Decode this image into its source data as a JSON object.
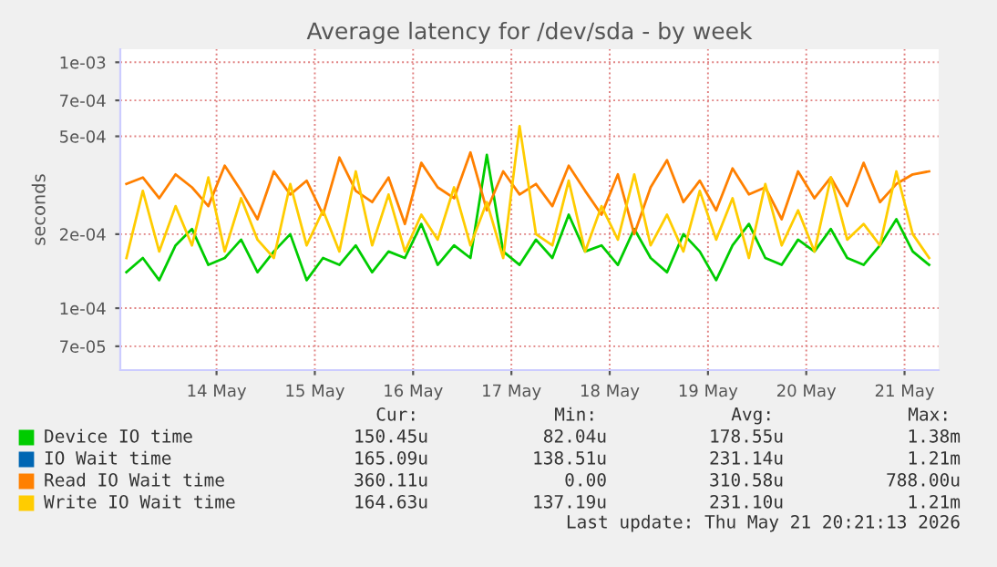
{
  "chart_data": {
    "type": "line",
    "title": "Average latency for /dev/sda - by week",
    "ylabel": "seconds",
    "log": "y",
    "x": [
      "2026-05-13T14:00",
      "2026-05-13T18:00",
      "2026-05-13T22:00",
      "2026-05-14T02:00",
      "2026-05-14T06:00",
      "2026-05-14T10:00",
      "2026-05-14T14:00",
      "2026-05-14T18:00",
      "2026-05-14T22:00",
      "2026-05-15T02:00",
      "2026-05-15T06:00",
      "2026-05-15T10:00",
      "2026-05-15T14:00",
      "2026-05-15T18:00",
      "2026-05-15T22:00",
      "2026-05-16T02:00",
      "2026-05-16T06:00",
      "2026-05-16T10:00",
      "2026-05-16T14:00",
      "2026-05-16T18:00",
      "2026-05-16T22:00",
      "2026-05-17T02:00",
      "2026-05-17T06:00",
      "2026-05-17T10:00",
      "2026-05-17T14:00",
      "2026-05-17T18:00",
      "2026-05-17T22:00",
      "2026-05-18T02:00",
      "2026-05-18T06:00",
      "2026-05-18T10:00",
      "2026-05-18T14:00",
      "2026-05-18T18:00",
      "2026-05-18T22:00",
      "2026-05-19T02:00",
      "2026-05-19T06:00",
      "2026-05-19T10:00",
      "2026-05-19T14:00",
      "2026-05-19T18:00",
      "2026-05-19T22:00",
      "2026-05-20T02:00",
      "2026-05-20T06:00",
      "2026-05-20T10:00",
      "2026-05-20T14:00",
      "2026-05-20T18:00",
      "2026-05-20T22:00",
      "2026-05-21T02:00",
      "2026-05-21T06:00",
      "2026-05-21T10:00",
      "2026-05-21T14:00",
      "2026-05-21T18:00"
    ],
    "series": [
      {
        "name": "Device IO time",
        "color": "#00cc00",
        "values": [
          0.00014,
          0.00016,
          0.00013,
          0.00018,
          0.00021,
          0.00015,
          0.00016,
          0.00019,
          0.00014,
          0.00017,
          0.0002,
          0.00013,
          0.00016,
          0.00015,
          0.00018,
          0.00014,
          0.00017,
          0.00016,
          0.00022,
          0.00015,
          0.00018,
          0.00016,
          0.00042,
          0.00017,
          0.00015,
          0.00019,
          0.00016,
          0.00024,
          0.00017,
          0.00018,
          0.00015,
          0.00021,
          0.00016,
          0.00014,
          0.0002,
          0.00017,
          0.00013,
          0.00018,
          0.00022,
          0.00016,
          0.00015,
          0.00019,
          0.00017,
          0.00021,
          0.00016,
          0.00015,
          0.00018,
          0.00023,
          0.00017,
          0.00015
        ]
      },
      {
        "name": "IO Wait time",
        "color": "#0066b3",
        "values": [
          null,
          null,
          null,
          null,
          null,
          null,
          null,
          null,
          null,
          null,
          null,
          null,
          null,
          null,
          null,
          null,
          null,
          null,
          null,
          null,
          null,
          null,
          null,
          null,
          null,
          null,
          null,
          null,
          null,
          null,
          null,
          null,
          null,
          null,
          null,
          null,
          null,
          null,
          null,
          null,
          null,
          null,
          null,
          null,
          null,
          null,
          null,
          null,
          null,
          null
        ]
      },
      {
        "name": "Read IO Wait time",
        "color": "#ff8000",
        "values": [
          0.00032,
          0.00034,
          0.00028,
          0.00035,
          0.00031,
          0.00026,
          0.00038,
          0.0003,
          0.00023,
          0.00036,
          0.00029,
          0.00033,
          0.00024,
          0.00041,
          0.0003,
          0.00027,
          0.00034,
          0.00022,
          0.00039,
          0.00031,
          0.00028,
          0.00043,
          0.00025,
          0.00036,
          0.00029,
          0.00032,
          0.00026,
          0.00038,
          0.0003,
          0.00024,
          0.00035,
          0.0002,
          0.00031,
          0.0004,
          0.00027,
          0.00033,
          0.00025,
          0.00037,
          0.00029,
          0.00031,
          0.00023,
          0.00036,
          0.00028,
          0.00034,
          0.00026,
          0.00039,
          0.00027,
          0.00032,
          0.00035,
          0.00036
        ]
      },
      {
        "name": "Write IO Wait time",
        "color": "#ffcc00",
        "values": [
          0.00016,
          0.0003,
          0.00017,
          0.00026,
          0.00018,
          0.00034,
          0.00017,
          0.00028,
          0.00019,
          0.00016,
          0.00032,
          0.00018,
          0.00025,
          0.00017,
          0.00036,
          0.00018,
          0.00029,
          0.00017,
          0.00024,
          0.00019,
          0.00031,
          0.00018,
          0.00027,
          0.00016,
          0.00055,
          0.0002,
          0.00018,
          0.00033,
          0.00017,
          0.00026,
          0.00019,
          0.00035,
          0.00018,
          0.00024,
          0.00017,
          0.0003,
          0.00019,
          0.00028,
          0.00016,
          0.00032,
          0.00018,
          0.00025,
          0.00017,
          0.00034,
          0.00019,
          0.00022,
          0.00018,
          0.00036,
          0.0002,
          0.00016
        ]
      }
    ],
    "xlim": [
      "2026-05-13T12:30",
      "2026-05-21T20:20"
    ],
    "xticks": [
      {
        "value": "2026-05-14T12:00",
        "label": "14 May"
      },
      {
        "value": "2026-05-15T12:00",
        "label": "15 May"
      },
      {
        "value": "2026-05-16T12:00",
        "label": "16 May"
      },
      {
        "value": "2026-05-17T12:00",
        "label": "17 May"
      },
      {
        "value": "2026-05-18T12:00",
        "label": "18 May"
      },
      {
        "value": "2026-05-19T12:00",
        "label": "19 May"
      },
      {
        "value": "2026-05-20T12:00",
        "label": "20 May"
      },
      {
        "value": "2026-05-21T12:00",
        "label": "21 May"
      }
    ],
    "ylim": [
      5.6e-05,
      0.00113
    ],
    "yticks": [
      {
        "value": 7e-05,
        "label": "7e-05"
      },
      {
        "value": 0.0001,
        "label": "1e-04"
      },
      {
        "value": 0.0002,
        "label": "2e-04"
      },
      {
        "value": 0.0005,
        "label": "5e-04"
      },
      {
        "value": 0.0007,
        "label": "7e-04"
      },
      {
        "value": 0.001,
        "label": "1e-03"
      }
    ],
    "grid": true,
    "legend": "bottom",
    "marker": "none",
    "line_style": "solid",
    "annotations": [
      "Cur:",
      "Min:",
      "Avg:",
      "Max:",
      "150.45u",
      "82.04u",
      "178.55u",
      "1.38m",
      "165.09u",
      "138.51u",
      "231.14u",
      "1.21m",
      "360.11u",
      "0.00",
      "310.58u",
      "788.00u",
      "164.63u",
      "137.19u",
      "231.10u",
      "1.21m",
      "Last update: Thu May 21 20:21:13 2026"
    ]
  }
}
